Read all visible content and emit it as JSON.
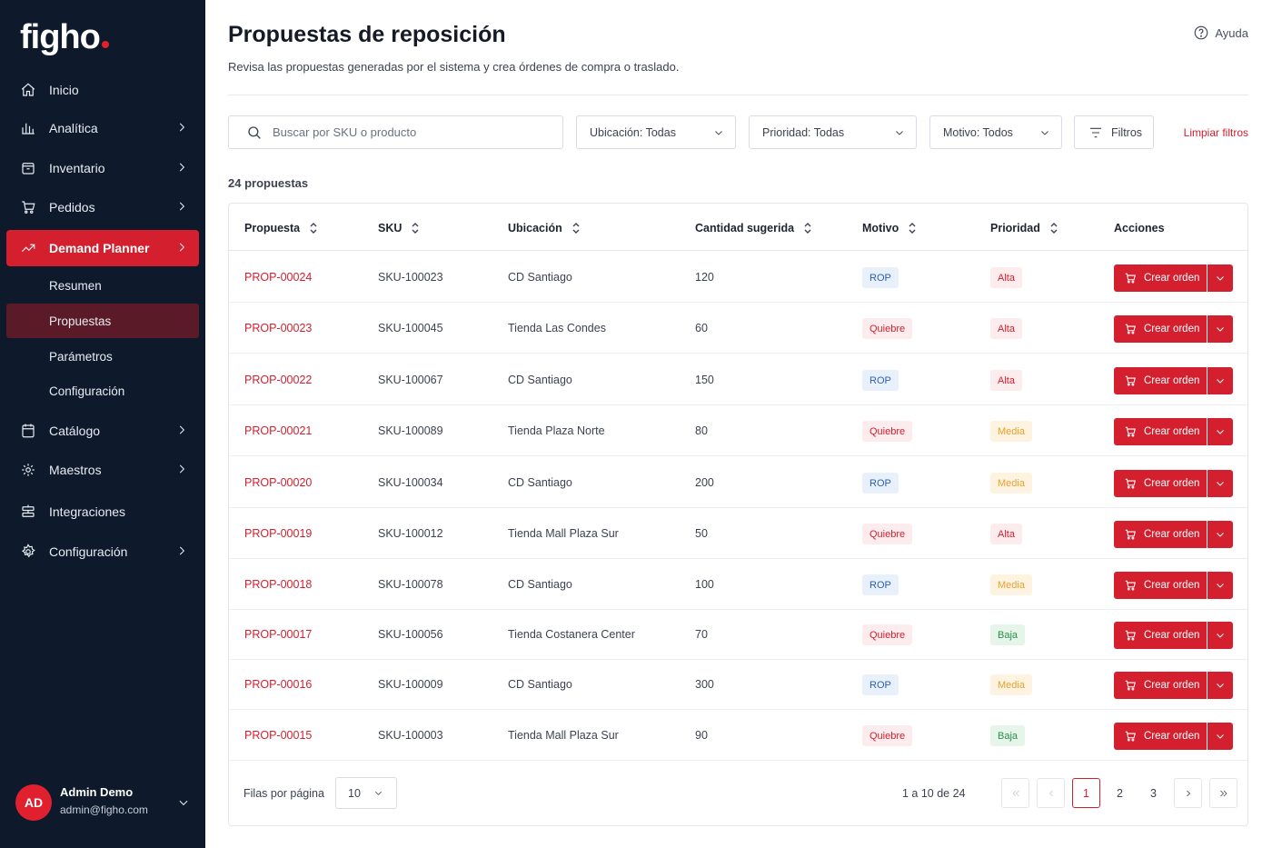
{
  "brand": {
    "name": "figho",
    "accent": "#d4202e",
    "sidebar_bg": "#0e1a2b"
  },
  "sidebar": {
    "items": [
      {
        "label": "Inicio",
        "icon": "home-icon"
      },
      {
        "label": "Analítica",
        "icon": "bar-chart-icon"
      },
      {
        "label": "Inventario",
        "icon": "box-icon"
      },
      {
        "label": "Pedidos",
        "icon": "cart-icon"
      },
      {
        "label": "Demand Planner",
        "icon": "trend-icon"
      },
      {
        "label": "Catálogo",
        "icon": "catalog-icon"
      },
      {
        "label": "Maestros",
        "icon": "gear-icon"
      },
      {
        "label": "Integraciones",
        "icon": "integration-icon"
      },
      {
        "label": "Configuración",
        "icon": "settings-icon"
      }
    ],
    "subitems": [
      {
        "label": "Resumen"
      },
      {
        "label": "Propuestas"
      },
      {
        "label": "Parámetros"
      },
      {
        "label": "Configuración"
      }
    ],
    "active_item": "Demand Planner",
    "active_subitem": "Propuestas"
  },
  "user": {
    "initials": "AD",
    "name": "Admin Demo",
    "email": "admin@figho.com"
  },
  "header": {
    "title": "Propuestas de reposición",
    "subtitle": "Revisa las propuestas generadas por el sistema y crea órdenes de compra o traslado.",
    "help_label": "Ayuda"
  },
  "filters": {
    "search_placeholder": "Buscar por SKU o producto",
    "location": "Ubicación: Todas",
    "priority": "Prioridad: Todas",
    "reason": "Motivo: Todos",
    "filters_label": "Filtros",
    "clear_label": "Limpiar filtros"
  },
  "count_label": "24 propuestas",
  "table": {
    "columns": [
      "Propuesta",
      "SKU",
      "Ubicación",
      "Cantidad sugerida",
      "Motivo",
      "Prioridad",
      "Acciones"
    ],
    "action_label": "Crear orden",
    "rows": [
      {
        "id": "PROP-00024",
        "sku": "SKU-100023",
        "location": "CD Santiago",
        "qty": "120",
        "reason": "ROP",
        "priority": "Alta"
      },
      {
        "id": "PROP-00023",
        "sku": "SKU-100045",
        "location": "Tienda Las Condes",
        "qty": "60",
        "reason": "Quiebre",
        "priority": "Alta"
      },
      {
        "id": "PROP-00022",
        "sku": "SKU-100067",
        "location": "CD Santiago",
        "qty": "150",
        "reason": "ROP",
        "priority": "Alta"
      },
      {
        "id": "PROP-00021",
        "sku": "SKU-100089",
        "location": "Tienda Plaza Norte",
        "qty": "80",
        "reason": "Quiebre",
        "priority": "Media"
      },
      {
        "id": "PROP-00020",
        "sku": "SKU-100034",
        "location": "CD Santiago",
        "qty": "200",
        "reason": "ROP",
        "priority": "Media"
      },
      {
        "id": "PROP-00019",
        "sku": "SKU-100012",
        "location": "Tienda Mall Plaza Sur",
        "qty": "50",
        "reason": "Quiebre",
        "priority": "Alta"
      },
      {
        "id": "PROP-00018",
        "sku": "SKU-100078",
        "location": "CD Santiago",
        "qty": "100",
        "reason": "ROP",
        "priority": "Media"
      },
      {
        "id": "PROP-00017",
        "sku": "SKU-100056",
        "location": "Tienda Costanera Center",
        "qty": "70",
        "reason": "Quiebre",
        "priority": "Baja"
      },
      {
        "id": "PROP-00016",
        "sku": "SKU-100009",
        "location": "CD Santiago",
        "qty": "300",
        "reason": "ROP",
        "priority": "Media"
      },
      {
        "id": "PROP-00015",
        "sku": "SKU-100003",
        "location": "Tienda Mall Plaza Sur",
        "qty": "90",
        "reason": "Quiebre",
        "priority": "Baja"
      }
    ]
  },
  "pagination": {
    "rows_per_page_label": "Filas por página",
    "rows_per_page": "10",
    "range_label": "1 a 10 de 24",
    "pages": [
      "1",
      "2",
      "3"
    ],
    "current_page": "1"
  }
}
